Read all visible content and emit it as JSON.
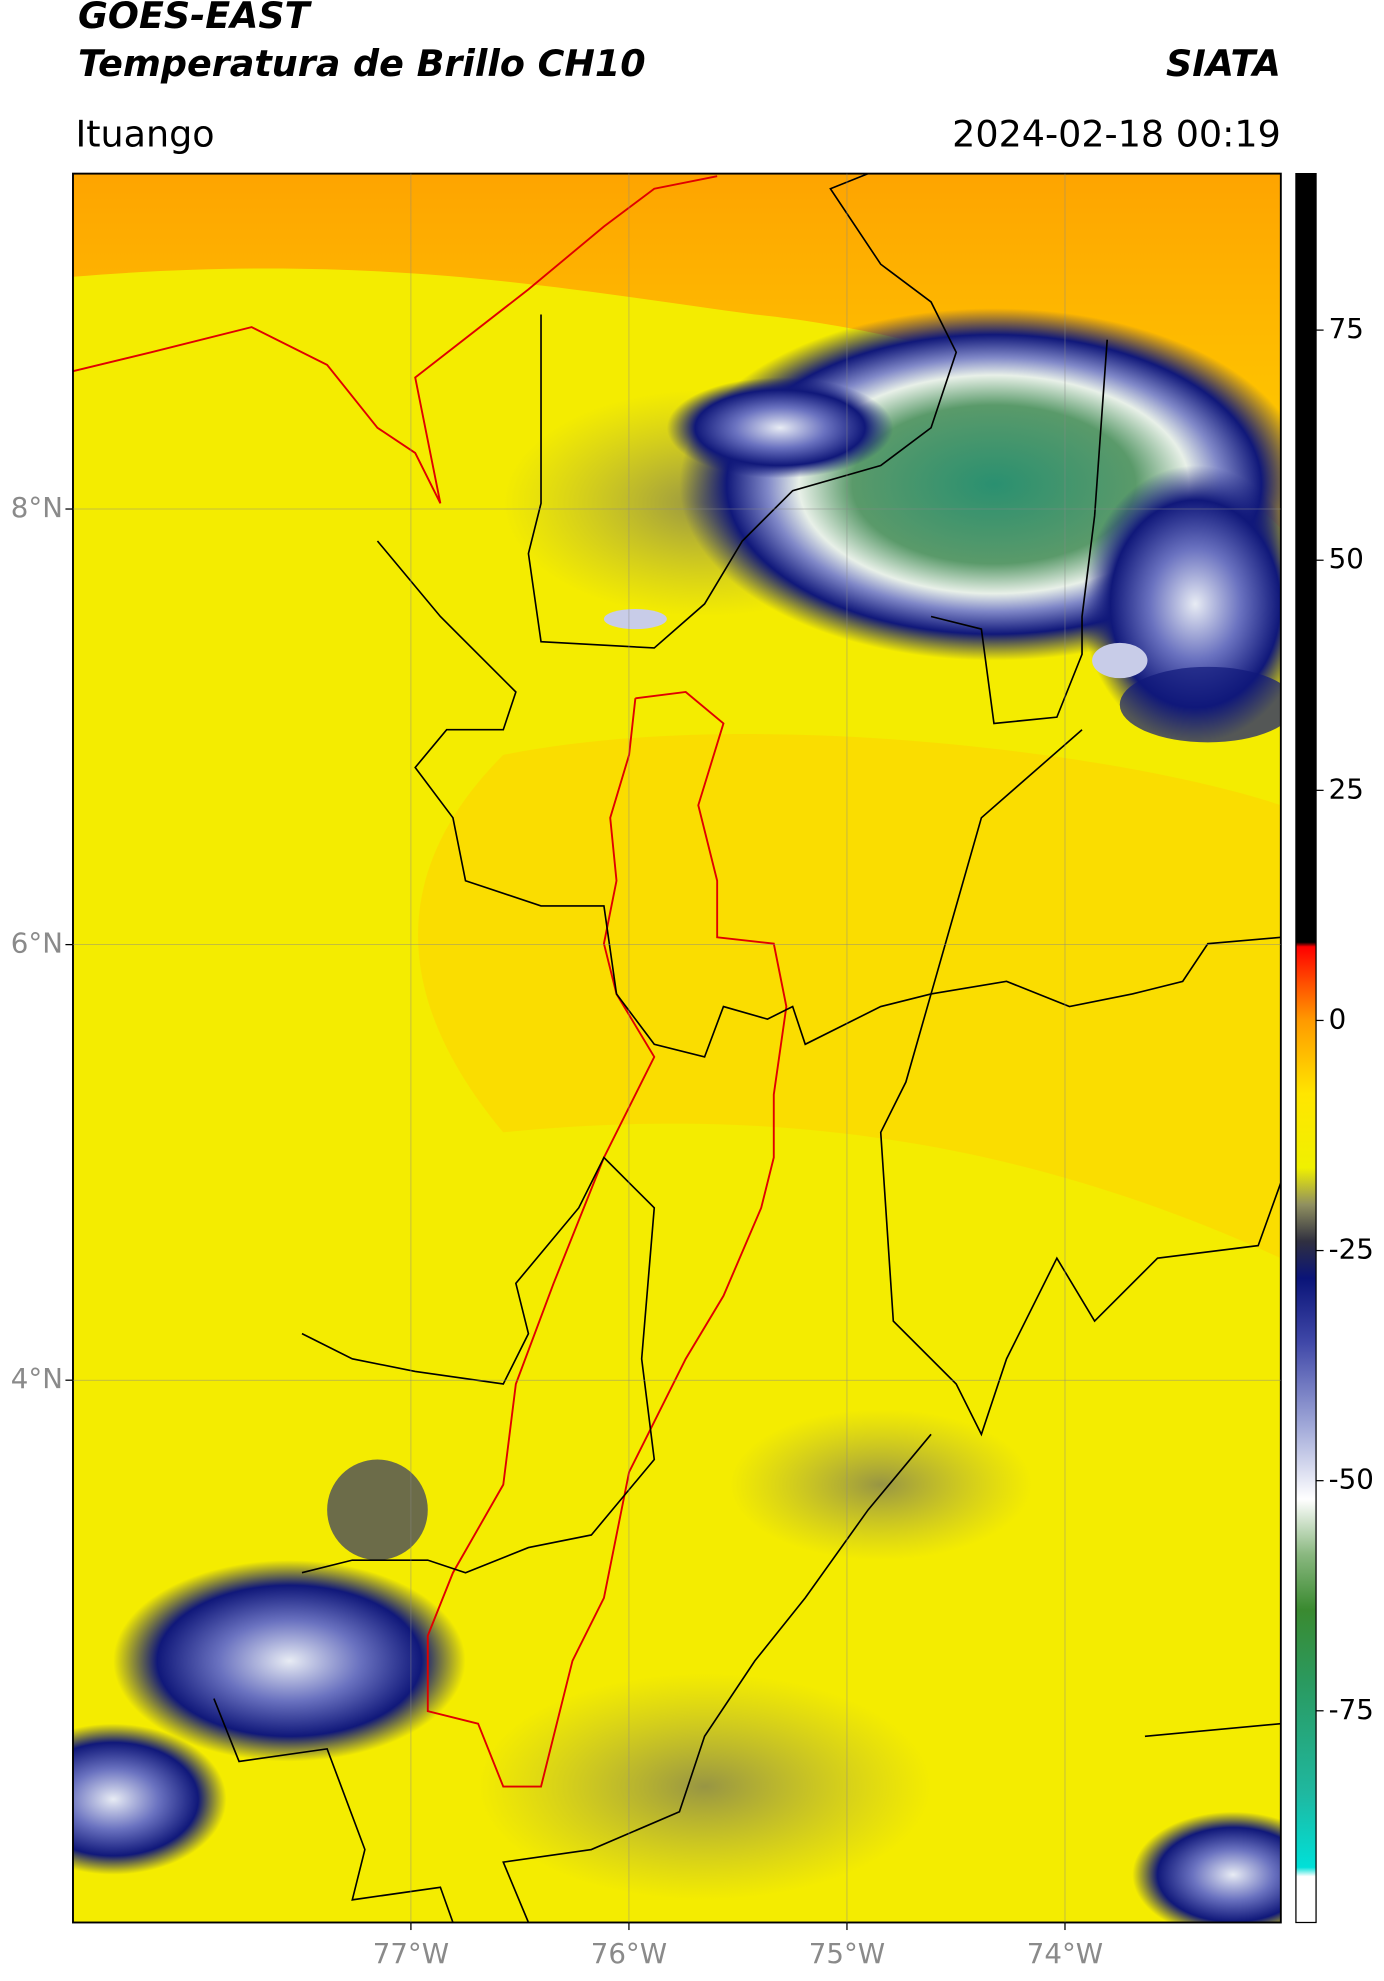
{
  "header": {
    "title": "GOES-EAST",
    "subtitle": "Temperatura de Brillo CH10",
    "credit": "SIATA",
    "location": "Ituango",
    "datetime": "2024-02-18 00:19"
  },
  "map": {
    "xlim": [
      -78.55,
      -73.01
    ],
    "ylim": [
      1.51,
      9.54
    ],
    "xticks": [
      {
        "value": -77,
        "label": "77°W"
      },
      {
        "value": -76,
        "label": "76°W"
      },
      {
        "value": -75,
        "label": "75°W"
      },
      {
        "value": -74,
        "label": "74°W"
      }
    ],
    "yticks": [
      {
        "value": 8,
        "label": "8°N"
      },
      {
        "value": 6,
        "label": "6°N"
      },
      {
        "value": 4,
        "label": "4°N"
      }
    ],
    "grid": true
  },
  "colorbar": {
    "range": [
      -98,
      92
    ],
    "ticks": [
      75,
      50,
      25,
      0,
      -25,
      -50,
      -75
    ],
    "stops": [
      {
        "value": -98,
        "color": "#ffffff"
      },
      {
        "value": -93,
        "color": "#ffffff"
      },
      {
        "value": -92,
        "color": "#00e0d8"
      },
      {
        "value": -84,
        "color": "#1fb8a0"
      },
      {
        "value": -72,
        "color": "#2a9a60"
      },
      {
        "value": -64,
        "color": "#3a8a30"
      },
      {
        "value": -58,
        "color": "#8ab880"
      },
      {
        "value": -52,
        "color": "#ffffff"
      },
      {
        "value": -44,
        "color": "#a0a8d8"
      },
      {
        "value": -35,
        "color": "#4048a8"
      },
      {
        "value": -28,
        "color": "#0a1478"
      },
      {
        "value": -24,
        "color": "#303040"
      },
      {
        "value": -20,
        "color": "#909060"
      },
      {
        "value": -16,
        "color": "#f0f000"
      },
      {
        "value": -8,
        "color": "#ffe600"
      },
      {
        "value": 0,
        "color": "#ff9a00"
      },
      {
        "value": 4,
        "color": "#ff5000"
      },
      {
        "value": 8,
        "color": "#ff0000"
      },
      {
        "value": 8.5,
        "color": "#000000"
      },
      {
        "value": 92,
        "color": "#000000"
      }
    ]
  }
}
